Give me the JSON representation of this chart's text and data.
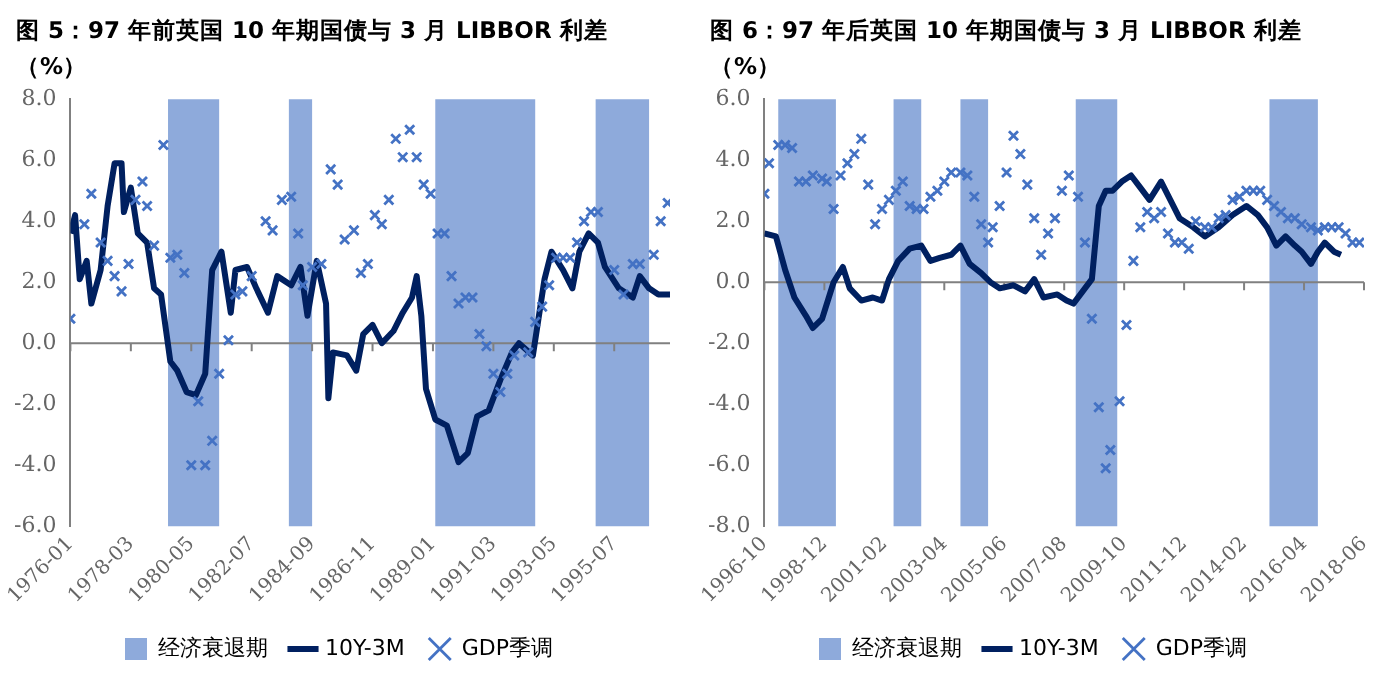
{
  "chart_data": [
    {
      "type": "line",
      "title": "图 5：97 年前英国 10 年期国债与 3 月 LIBBOR 利差（%）",
      "legend": "bottom",
      "grid": false,
      "xlim": [
        "1976-01",
        "1997-07"
      ],
      "xticks": [
        "1976-01",
        "1978-03",
        "1980-05",
        "1982-07",
        "1984-09",
        "1986-11",
        "1989-01",
        "1991-03",
        "1993-05",
        "1995-07"
      ],
      "ylim": [
        -6,
        8
      ],
      "yticks": [
        {
          "value": -6,
          "label": "-6.0"
        },
        {
          "value": -4,
          "label": "-4.0"
        },
        {
          "value": -2,
          "label": "-2.0"
        },
        {
          "value": 0,
          "label": "0.0"
        },
        {
          "value": 2,
          "label": "2.0"
        },
        {
          "value": 4,
          "label": "4.0"
        },
        {
          "value": 6,
          "label": "6.0"
        },
        {
          "value": 8,
          "label": "8.0"
        }
      ],
      "bands": [
        {
          "axis": "x",
          "from": "1979-07",
          "to": "1981-05",
          "label": "经济衰退期",
          "color": "#8eaadb"
        },
        {
          "axis": "x",
          "from": "1983-11",
          "to": "1984-09",
          "color": "#8eaadb"
        },
        {
          "axis": "x",
          "from": "1989-02",
          "to": "1992-09",
          "color": "#8eaadb"
        },
        {
          "axis": "x",
          "from": "1994-11",
          "to": "1996-10",
          "color": "#8eaadb"
        }
      ],
      "ref_lines": [
        {
          "axis": "y",
          "value": 0,
          "color": "#808080"
        }
      ],
      "series": [
        {
          "name": "10Y-3M",
          "type": "line",
          "marker": "none",
          "color": "#002060",
          "x": [
            "1976-01",
            "1976-03",
            "1976-05",
            "1976-08",
            "1976-10",
            "1977-02",
            "1977-05",
            "1977-08",
            "1977-11",
            "1977-12",
            "1978-03",
            "1978-06",
            "1978-10",
            "1979-01",
            "1979-04",
            "1979-08",
            "1979-11",
            "1980-03",
            "1980-07",
            "1980-11",
            "1981-02",
            "1981-06",
            "1981-10",
            "1981-12",
            "1982-05",
            "1982-09",
            "1983-02",
            "1983-06",
            "1983-12",
            "1984-04",
            "1984-07",
            "1984-11",
            "1985-03",
            "1985-04",
            "1985-06",
            "1985-12",
            "1986-04",
            "1986-07",
            "1986-11",
            "1987-03",
            "1987-08",
            "1987-12",
            "1988-04",
            "1988-06",
            "1988-08",
            "1988-10",
            "1989-02",
            "1989-07",
            "1989-12",
            "1990-04",
            "1990-08",
            "1991-01",
            "1991-06",
            "1991-11",
            "1992-02",
            "1992-08",
            "1992-10",
            "1993-01",
            "1993-04",
            "1993-09",
            "1994-01",
            "1994-04",
            "1994-08",
            "1994-12",
            "1995-03",
            "1995-09",
            "1996-03",
            "1996-06",
            "1996-10",
            "1997-02",
            "1997-07"
          ],
          "values": [
            3.6,
            4.2,
            2.1,
            2.7,
            1.3,
            2.4,
            4.5,
            5.9,
            5.9,
            4.3,
            5.1,
            3.6,
            3.3,
            1.8,
            1.6,
            -0.6,
            -0.9,
            -1.6,
            -1.7,
            -1.0,
            2.4,
            3.0,
            1.0,
            2.4,
            2.5,
            1.8,
            1.0,
            2.2,
            1.9,
            2.5,
            0.9,
            2.7,
            1.3,
            -1.8,
            -0.3,
            -0.4,
            -0.9,
            0.3,
            0.6,
            0.0,
            0.4,
            1.0,
            1.5,
            2.2,
            0.9,
            -1.5,
            -2.5,
            -2.7,
            -3.9,
            -3.6,
            -2.4,
            -2.2,
            -1.2,
            -0.3,
            0.0,
            -0.4,
            0.6,
            2.1,
            3.0,
            2.4,
            1.8,
            3.0,
            3.6,
            3.3,
            2.5,
            1.8,
            1.5,
            2.2,
            1.8,
            1.6,
            1.6
          ]
        },
        {
          "name": "GDP季调",
          "type": "scatter",
          "marker": "cross",
          "color": "#4472c4",
          "x": [
            "1976-01",
            "1976-07",
            "1976-10",
            "1977-02",
            "1977-05",
            "1977-08",
            "1977-11",
            "1978-02",
            "1978-05",
            "1978-08",
            "1978-10",
            "1979-01",
            "1979-05",
            "1979-08",
            "1979-11",
            "1980-02",
            "1980-05",
            "1980-08",
            "1980-11",
            "1981-02",
            "1981-05",
            "1981-09",
            "1981-12",
            "1982-03",
            "1982-07",
            "1983-01",
            "1983-04",
            "1983-08",
            "1983-12",
            "1984-03",
            "1984-05",
            "1984-09",
            "1985-01",
            "1985-05",
            "1985-08",
            "1985-11",
            "1986-03",
            "1986-06",
            "1986-09",
            "1986-12",
            "1987-03",
            "1987-06",
            "1987-09",
            "1987-12",
            "1988-03",
            "1988-06",
            "1988-09",
            "1988-12",
            "1989-03",
            "1989-06",
            "1989-09",
            "1989-12",
            "1990-03",
            "1990-06",
            "1990-09",
            "1990-12",
            "1991-03",
            "1991-06",
            "1991-09",
            "1991-12",
            "1992-06",
            "1992-09",
            "1992-12",
            "1993-03",
            "1993-06",
            "1993-09",
            "1993-12",
            "1994-03",
            "1994-06",
            "1994-09",
            "1994-12",
            "1995-07",
            "1995-11",
            "1996-03",
            "1996-06",
            "1996-12",
            "1997-03",
            "1997-06"
          ],
          "values": [
            0.8,
            3.9,
            4.9,
            3.3,
            2.7,
            2.2,
            1.7,
            2.6,
            4.7,
            5.3,
            4.5,
            3.2,
            6.5,
            2.8,
            2.9,
            2.3,
            -4.0,
            -1.9,
            -4.0,
            -3.2,
            -1.0,
            0.1,
            1.6,
            1.7,
            2.2,
            4.0,
            3.7,
            4.7,
            4.8,
            3.6,
            1.9,
            2.5,
            2.6,
            5.7,
            5.2,
            3.4,
            3.7,
            2.3,
            2.6,
            4.2,
            3.9,
            4.7,
            6.7,
            6.1,
            7.0,
            6.1,
            5.2,
            4.9,
            3.6,
            3.6,
            2.2,
            1.3,
            1.5,
            1.5,
            0.3,
            -0.1,
            -1.0,
            -1.6,
            -1.0,
            -0.4,
            -0.3,
            0.7,
            1.2,
            1.9,
            2.8,
            2.8,
            2.8,
            3.3,
            4.0,
            4.3,
            4.3,
            2.4,
            1.6,
            2.6,
            2.6,
            2.9,
            4.0,
            4.6
          ]
        }
      ]
    },
    {
      "type": "line",
      "title": "图 6：97 年后英国 10 年期国债与 3 月 LIBBOR 利差（%）",
      "legend": "bottom",
      "grid": false,
      "xlim": [
        "1996-10",
        "2018-06"
      ],
      "xticks": [
        "1996-10",
        "1998-12",
        "2001-02",
        "2003-04",
        "2005-06",
        "2007-08",
        "2009-10",
        "2011-12",
        "2014-02",
        "2016-04",
        "2018-06"
      ],
      "ylim": [
        -8,
        6
      ],
      "yticks": [
        {
          "value": -8,
          "label": "-8.0"
        },
        {
          "value": -6,
          "label": "-6.0"
        },
        {
          "value": -4,
          "label": "-4.0"
        },
        {
          "value": -2,
          "label": "-2.0"
        },
        {
          "value": 0,
          "label": "0.0"
        },
        {
          "value": 2,
          "label": "2.0"
        },
        {
          "value": 4,
          "label": "4.0"
        },
        {
          "value": 6,
          "label": "6.0"
        }
      ],
      "bands": [
        {
          "axis": "x",
          "from": "1997-04",
          "to": "1999-05",
          "label": "经济衰退期",
          "color": "#8eaadb"
        },
        {
          "axis": "x",
          "from": "2001-06",
          "to": "2002-06",
          "color": "#8eaadb"
        },
        {
          "axis": "x",
          "from": "2003-11",
          "to": "2004-11",
          "color": "#8eaadb"
        },
        {
          "axis": "x",
          "from": "2008-01",
          "to": "2009-07",
          "color": "#8eaadb"
        },
        {
          "axis": "x",
          "from": "2015-01",
          "to": "2016-10",
          "color": "#8eaadb"
        }
      ],
      "ref_lines": [
        {
          "axis": "y",
          "value": 0,
          "color": "#808080"
        }
      ],
      "series": [
        {
          "name": "10Y-3M",
          "type": "line",
          "marker": "none",
          "color": "#002060",
          "x": [
            "1996-10",
            "1997-03",
            "1997-07",
            "1997-11",
            "1998-04",
            "1998-07",
            "1998-11",
            "1999-04",
            "1999-08",
            "1999-11",
            "2000-04",
            "2000-09",
            "2001-01",
            "2001-04",
            "2001-08",
            "2002-01",
            "2002-06",
            "2002-10",
            "2003-02",
            "2003-07",
            "2003-11",
            "2004-03",
            "2004-08",
            "2004-12",
            "2005-04",
            "2005-10",
            "2006-03",
            "2006-07",
            "2006-11",
            "2007-05",
            "2007-09",
            "2007-12",
            "2008-04",
            "2008-08",
            "2008-11",
            "2009-02",
            "2009-05",
            "2009-09",
            "2010-01",
            "2010-05",
            "2010-09",
            "2011-02",
            "2011-06",
            "2011-10",
            "2012-04",
            "2012-09",
            "2013-03",
            "2013-09",
            "2014-03",
            "2014-08",
            "2014-12",
            "2015-04",
            "2015-08",
            "2015-12",
            "2016-03",
            "2016-07",
            "2016-10",
            "2017-01",
            "2017-05",
            "2017-08"
          ],
          "values": [
            1.6,
            1.5,
            0.4,
            -0.5,
            -1.1,
            -1.5,
            -1.2,
            0.0,
            0.5,
            -0.2,
            -0.6,
            -0.5,
            -0.6,
            0.1,
            0.7,
            1.1,
            1.2,
            0.7,
            0.8,
            0.9,
            1.2,
            0.6,
            0.3,
            0.0,
            -0.2,
            -0.1,
            -0.3,
            0.1,
            -0.5,
            -0.4,
            -0.6,
            -0.7,
            -0.3,
            0.1,
            2.5,
            3.0,
            3.0,
            3.3,
            3.5,
            3.1,
            2.7,
            3.3,
            2.7,
            2.1,
            1.8,
            1.5,
            1.8,
            2.2,
            2.5,
            2.2,
            1.8,
            1.2,
            1.5,
            1.2,
            1.0,
            0.6,
            1.0,
            1.3,
            1.0,
            0.9
          ]
        },
        {
          "name": "GDP季调",
          "type": "scatter",
          "marker": "cross",
          "color": "#4472c4",
          "x": [
            "1996-10",
            "1996-12",
            "1997-04",
            "1997-07",
            "1997-10",
            "1998-01",
            "1998-04",
            "1998-07",
            "1998-11",
            "1999-01",
            "1999-04",
            "1999-07",
            "1999-10",
            "2000-01",
            "2000-04",
            "2000-07",
            "2000-10",
            "2001-01",
            "2001-04",
            "2001-07",
            "2001-10",
            "2002-01",
            "2002-04",
            "2002-07",
            "2002-10",
            "2003-01",
            "2003-04",
            "2003-07",
            "2003-11",
            "2004-02",
            "2004-05",
            "2004-08",
            "2004-11",
            "2005-01",
            "2005-04",
            "2005-07",
            "2005-10",
            "2006-01",
            "2006-04",
            "2006-07",
            "2006-10",
            "2007-01",
            "2007-04",
            "2007-07",
            "2007-10",
            "2008-02",
            "2008-05",
            "2008-08",
            "2008-11",
            "2009-02",
            "2009-04",
            "2009-08",
            "2009-11",
            "2010-02",
            "2010-05",
            "2010-08",
            "2010-11",
            "2011-02",
            "2011-05",
            "2011-08",
            "2011-11",
            "2012-02",
            "2012-05",
            "2012-09",
            "2012-12",
            "2013-03",
            "2013-06",
            "2013-09",
            "2013-12",
            "2014-03",
            "2014-06",
            "2014-09",
            "2014-12",
            "2015-03",
            "2015-06",
            "2015-09",
            "2015-12",
            "2016-03",
            "2016-07",
            "2016-10",
            "2017-01",
            "2017-04",
            "2017-07",
            "2017-10",
            "2018-01",
            "2018-04"
          ],
          "values": [
            2.9,
            3.9,
            4.5,
            4.5,
            4.4,
            3.3,
            3.3,
            3.5,
            3.4,
            3.3,
            2.4,
            3.5,
            3.9,
            4.2,
            4.7,
            3.2,
            1.9,
            2.4,
            2.7,
            3.0,
            3.3,
            2.5,
            2.4,
            2.4,
            2.8,
            3.0,
            3.3,
            3.6,
            3.6,
            3.5,
            2.8,
            1.9,
            1.3,
            1.8,
            2.5,
            3.6,
            4.8,
            4.2,
            3.2,
            2.1,
            0.9,
            1.6,
            2.1,
            3.0,
            3.5,
            2.8,
            1.3,
            -1.2,
            -4.1,
            -6.1,
            -5.5,
            -3.9,
            -1.4,
            0.7,
            1.8,
            2.3,
            2.1,
            2.3,
            1.6,
            1.3,
            1.3,
            1.1,
            2.0,
            1.8,
            1.8,
            2.1,
            2.2,
            2.7,
            2.8,
            3.0,
            3.0,
            3.0,
            2.7,
            2.5,
            2.3,
            2.1,
            2.1,
            1.9,
            1.8,
            1.7,
            1.8,
            1.8,
            1.8,
            1.6,
            1.3,
            1.3
          ]
        }
      ]
    }
  ]
}
